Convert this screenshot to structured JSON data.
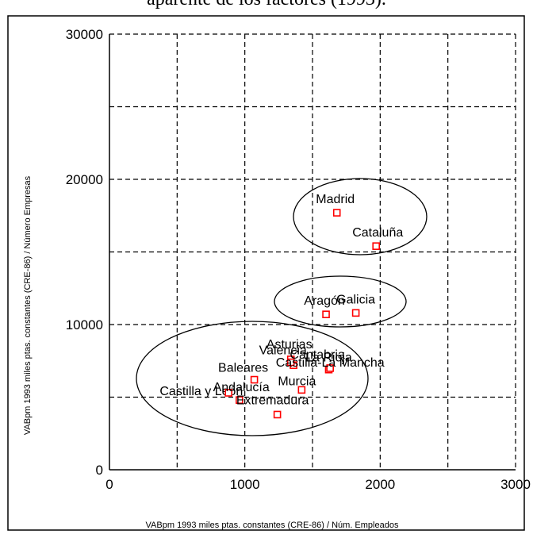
{
  "chart_data": {
    "type": "scatter",
    "title": "aparente de los factores (1993).",
    "xlabel": "VABpm 1993 miles ptas. constantes (CRE-86) / Núm. Empleados",
    "ylabel": "VABpm 1993 miles ptas. constantes (CRE-86) / Número Empresas",
    "xlim": [
      0,
      3000
    ],
    "ylim": [
      0,
      30000
    ],
    "xticks": [
      "0",
      "1000",
      "2000",
      "3000"
    ],
    "yticks": [
      "0",
      "10000",
      "20000",
      "30000"
    ],
    "grid": true,
    "point_color": "#ff0000",
    "points": [
      {
        "label": "Madrid",
        "x": 1680,
        "y": 17700
      },
      {
        "label": "Cataluña",
        "x": 1970,
        "y": 15400
      },
      {
        "label": "Aragón",
        "x": 1600,
        "y": 10700
      },
      {
        "label": "Galicia",
        "x": 1820,
        "y": 10800
      },
      {
        "label": "Asturias",
        "x": 1340,
        "y": 7600
      },
      {
        "label": "Cantabria",
        "x": 1360,
        "y": 7200
      },
      {
        "label": "Valencia",
        "x": 1340,
        "y": 7400
      },
      {
        "label": "La Rioja",
        "x": 1620,
        "y": 6900
      },
      {
        "label": "Baleares",
        "x": 1070,
        "y": 6200
      },
      {
        "label": "Castilla-La Mancha",
        "x": 1630,
        "y": 7000
      },
      {
        "label": "Castilla y León",
        "x": 960,
        "y": 4800
      },
      {
        "label": "Murcia",
        "x": 1420,
        "y": 5500
      },
      {
        "label": "Andalucía",
        "x": 880,
        "y": 5300
      },
      {
        "label": "Extremadura",
        "x": 1240,
        "y": 3800
      }
    ]
  }
}
